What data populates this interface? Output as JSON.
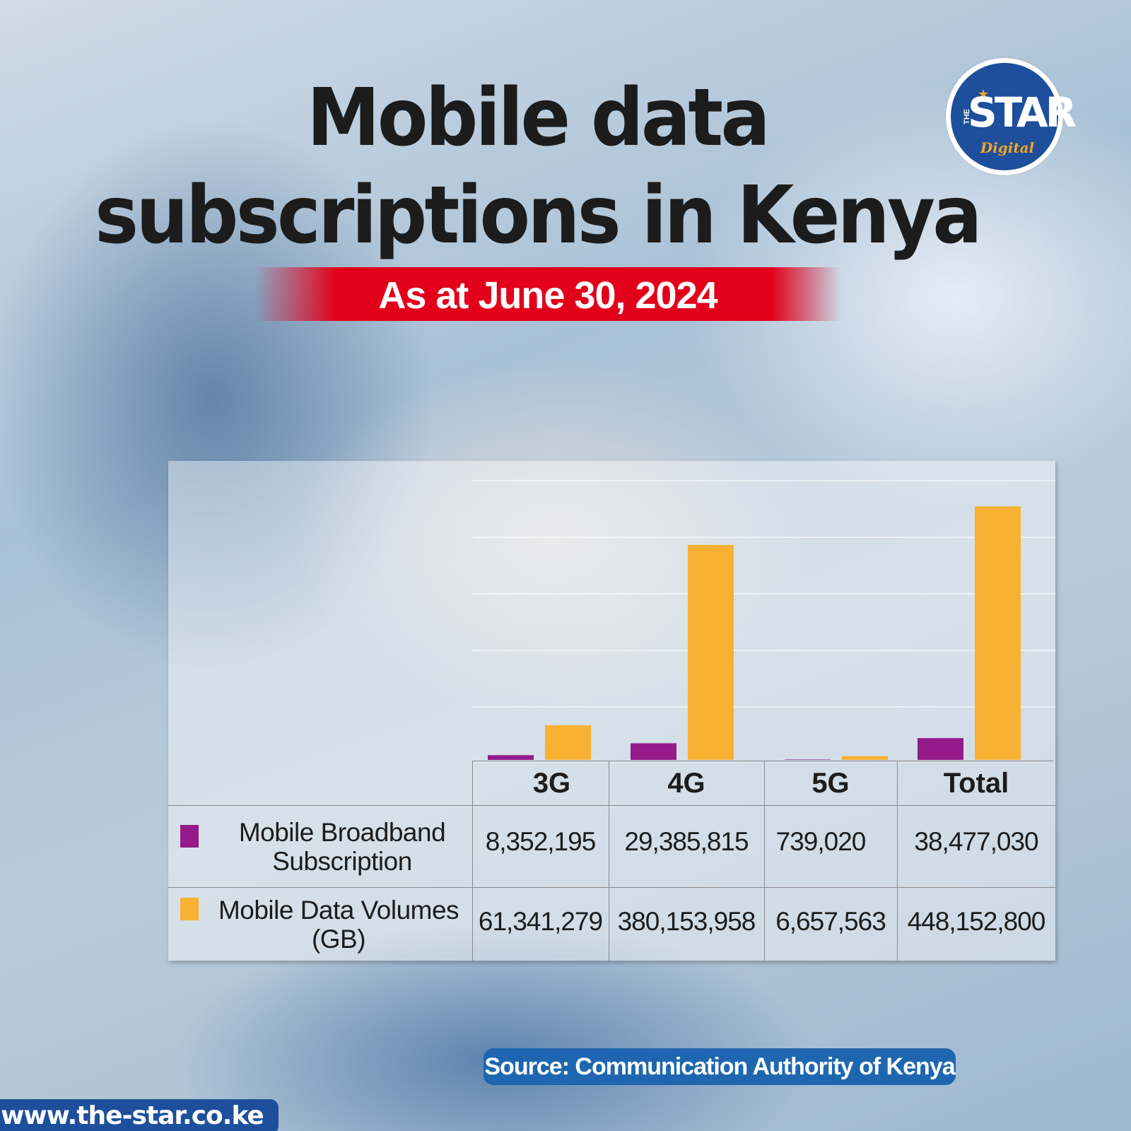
{
  "header": {
    "title_line1": "Mobile data",
    "title_line2": "subscriptions in Kenya",
    "subtitle": "As at June 30, 2024"
  },
  "logo": {
    "the": "THE",
    "star": "STAR",
    "digital": "Digital"
  },
  "colors": {
    "broadband": "#951a8a",
    "volumes": "#f8b133",
    "subtitle_band": "#e2001a",
    "source_pill": "#1e67b0",
    "brand_blue": "#1d4f9c"
  },
  "chart_data": {
    "type": "bar",
    "categories": [
      "3G",
      "4G",
      "5G",
      "Total"
    ],
    "series": [
      {
        "name": "Mobile Broadband Subscription",
        "values": [
          8352195,
          29385815,
          739020,
          38477030
        ]
      },
      {
        "name": "Mobile Data Volumes (GB)",
        "values": [
          61341279,
          380153958,
          6657563,
          448152800
        ]
      }
    ],
    "grid": true,
    "legend": "table-left"
  },
  "table": {
    "headers": [
      "3G",
      "4G",
      "5G",
      "Total"
    ],
    "rows": [
      {
        "label_line1": "Mobile Broadband",
        "label_line2": "Subscription",
        "values": [
          "8,352,195",
          "29,385,815",
          "739,020",
          "38,477,030"
        ]
      },
      {
        "label_line1": "Mobile Data Volumes",
        "label_line2": "(GB)",
        "values": [
          "61,341,279",
          "380,153,958",
          "6,657,563",
          "448,152,800"
        ]
      }
    ]
  },
  "footer": {
    "source": "Source: Communication Authority of Kenya",
    "url": "www.the-star.co.ke"
  }
}
